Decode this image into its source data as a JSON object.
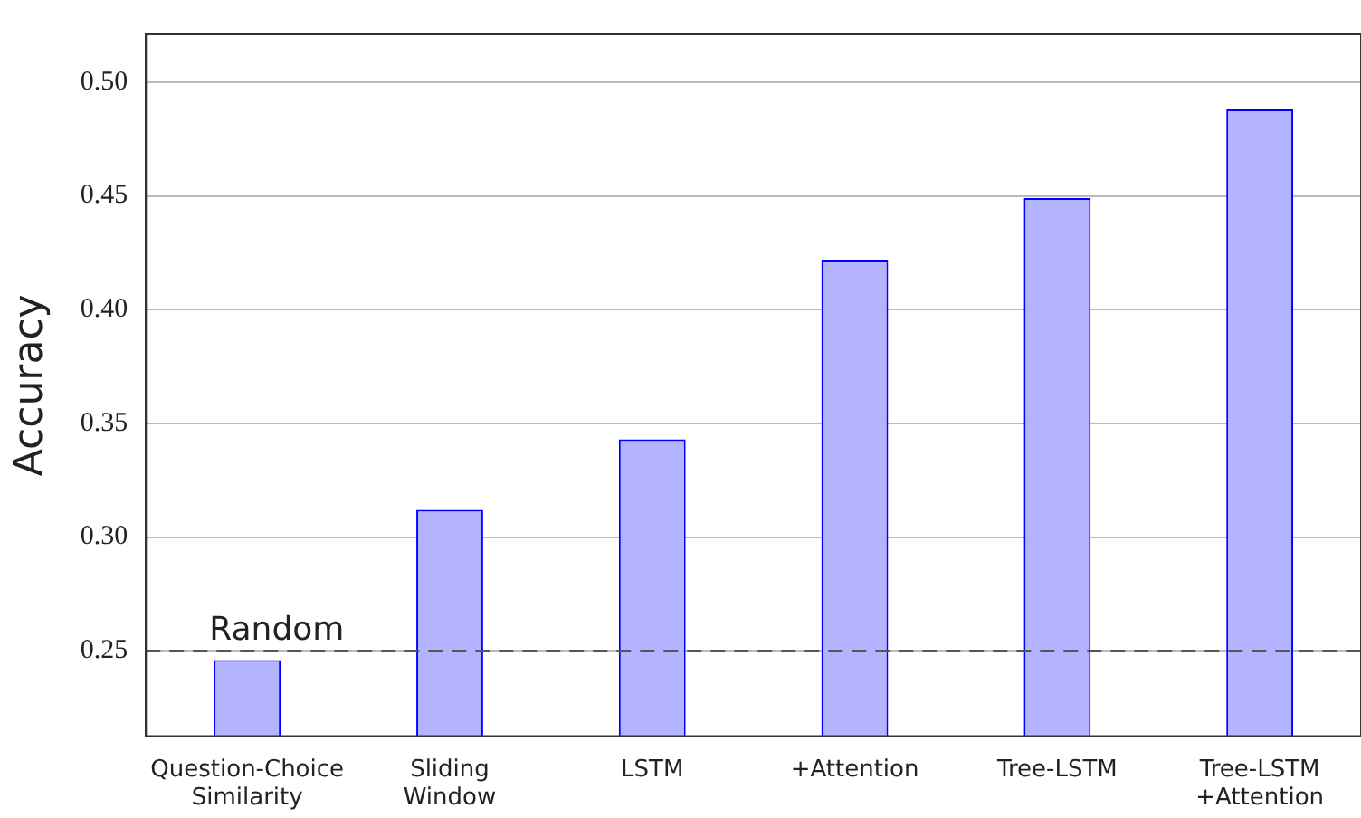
{
  "chart_data": {
    "type": "bar",
    "ylabel": "Accuracy",
    "categories": [
      "Question-Choice Similarity",
      "Sliding Window",
      "LSTM",
      "+Attention",
      "Tree-LSTM",
      "Tree-LSTM +Attention"
    ],
    "series": [
      {
        "color": "#b3b3ff",
        "values": [
          0.246,
          0.312,
          0.343,
          0.422,
          0.449,
          0.488
        ]
      }
    ],
    "ylim": [
      0.2125,
      0.521
    ],
    "yticks": [
      0.25,
      {
        "value": 0.3,
        "label": "0.30"
      },
      0.35,
      {
        "value": 0.4,
        "label": "0.40"
      },
      0.45,
      {
        "value": 0.5,
        "label": "0.50"
      }
    ],
    "ref_lines": [
      {
        "axis": "y",
        "value": 0.25,
        "label": "Random",
        "color": "#555555",
        "line_style": "dashed"
      }
    ],
    "grid": "y",
    "legend": false
  }
}
